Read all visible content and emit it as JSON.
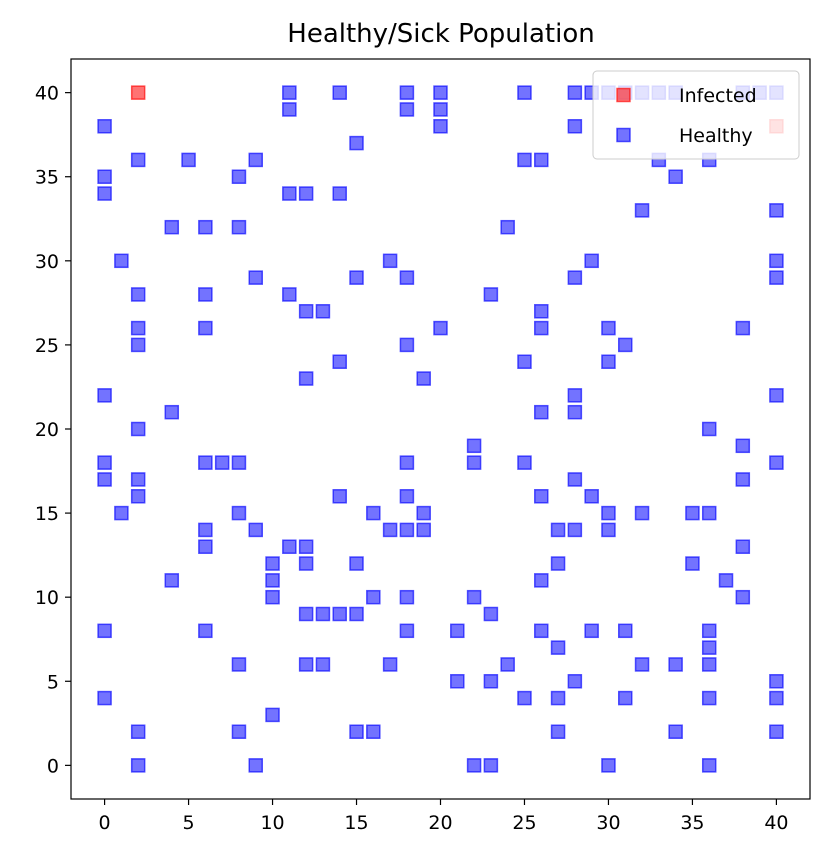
{
  "chart_data": {
    "type": "scatter",
    "title": "Healthy/Sick Population",
    "xlabel": "",
    "ylabel": "",
    "xlim": [
      -2,
      42
    ],
    "ylim": [
      -2,
      42
    ],
    "x_ticks": [
      0,
      5,
      10,
      15,
      20,
      25,
      30,
      35,
      40
    ],
    "y_ticks": [
      0,
      5,
      10,
      15,
      20,
      25,
      30,
      35,
      40
    ],
    "grid": false,
    "legend_position": "top-right",
    "series": [
      {
        "name": "Infected",
        "color": "#ff0000",
        "marker": "square",
        "points": [
          [
            2,
            40
          ],
          [
            40,
            38
          ]
        ]
      },
      {
        "name": "Healthy",
        "color": "#0000ff",
        "marker": "square",
        "points": [
          [
            11,
            40
          ],
          [
            14,
            40
          ],
          [
            18,
            40
          ],
          [
            20,
            40
          ],
          [
            25,
            40
          ],
          [
            28,
            40
          ],
          [
            29,
            40
          ],
          [
            30,
            40
          ],
          [
            31,
            40
          ],
          [
            32,
            40
          ],
          [
            33,
            40
          ],
          [
            34,
            40
          ],
          [
            38,
            40
          ],
          [
            39,
            40
          ],
          [
            40,
            40
          ],
          [
            11,
            39
          ],
          [
            18,
            39
          ],
          [
            20,
            39
          ],
          [
            0,
            38
          ],
          [
            20,
            38
          ],
          [
            28,
            38
          ],
          [
            15,
            37
          ],
          [
            2,
            36
          ],
          [
            5,
            36
          ],
          [
            9,
            36
          ],
          [
            25,
            36
          ],
          [
            26,
            36
          ],
          [
            33,
            36
          ],
          [
            36,
            36
          ],
          [
            0,
            35
          ],
          [
            8,
            35
          ],
          [
            34,
            35
          ],
          [
            0,
            34
          ],
          [
            11,
            34
          ],
          [
            12,
            34
          ],
          [
            14,
            34
          ],
          [
            32,
            33
          ],
          [
            40,
            33
          ],
          [
            4,
            32
          ],
          [
            6,
            32
          ],
          [
            8,
            32
          ],
          [
            24,
            32
          ],
          [
            1,
            30
          ],
          [
            17,
            30
          ],
          [
            29,
            30
          ],
          [
            40,
            30
          ],
          [
            9,
            29
          ],
          [
            15,
            29
          ],
          [
            18,
            29
          ],
          [
            28,
            29
          ],
          [
            40,
            29
          ],
          [
            2,
            28
          ],
          [
            6,
            28
          ],
          [
            11,
            28
          ],
          [
            23,
            28
          ],
          [
            12,
            27
          ],
          [
            13,
            27
          ],
          [
            26,
            27
          ],
          [
            2,
            26
          ],
          [
            6,
            26
          ],
          [
            20,
            26
          ],
          [
            26,
            26
          ],
          [
            30,
            26
          ],
          [
            38,
            26
          ],
          [
            2,
            25
          ],
          [
            18,
            25
          ],
          [
            31,
            25
          ],
          [
            14,
            24
          ],
          [
            25,
            24
          ],
          [
            30,
            24
          ],
          [
            12,
            23
          ],
          [
            19,
            23
          ],
          [
            0,
            22
          ],
          [
            28,
            22
          ],
          [
            40,
            22
          ],
          [
            4,
            21
          ],
          [
            26,
            21
          ],
          [
            28,
            21
          ],
          [
            2,
            20
          ],
          [
            36,
            20
          ],
          [
            22,
            19
          ],
          [
            38,
            19
          ],
          [
            0,
            18
          ],
          [
            6,
            18
          ],
          [
            7,
            18
          ],
          [
            8,
            18
          ],
          [
            18,
            18
          ],
          [
            22,
            18
          ],
          [
            25,
            18
          ],
          [
            40,
            18
          ],
          [
            0,
            17
          ],
          [
            2,
            17
          ],
          [
            28,
            17
          ],
          [
            38,
            17
          ],
          [
            2,
            16
          ],
          [
            14,
            16
          ],
          [
            18,
            16
          ],
          [
            26,
            16
          ],
          [
            29,
            16
          ],
          [
            1,
            15
          ],
          [
            8,
            15
          ],
          [
            16,
            15
          ],
          [
            19,
            15
          ],
          [
            30,
            15
          ],
          [
            32,
            15
          ],
          [
            35,
            15
          ],
          [
            36,
            15
          ],
          [
            6,
            14
          ],
          [
            9,
            14
          ],
          [
            17,
            14
          ],
          [
            18,
            14
          ],
          [
            19,
            14
          ],
          [
            27,
            14
          ],
          [
            28,
            14
          ],
          [
            30,
            14
          ],
          [
            6,
            13
          ],
          [
            11,
            13
          ],
          [
            12,
            13
          ],
          [
            38,
            13
          ],
          [
            10,
            12
          ],
          [
            12,
            12
          ],
          [
            15,
            12
          ],
          [
            27,
            12
          ],
          [
            35,
            12
          ],
          [
            4,
            11
          ],
          [
            10,
            11
          ],
          [
            26,
            11
          ],
          [
            37,
            11
          ],
          [
            10,
            10
          ],
          [
            16,
            10
          ],
          [
            18,
            10
          ],
          [
            22,
            10
          ],
          [
            38,
            10
          ],
          [
            12,
            9
          ],
          [
            13,
            9
          ],
          [
            14,
            9
          ],
          [
            15,
            9
          ],
          [
            23,
            9
          ],
          [
            0,
            8
          ],
          [
            6,
            8
          ],
          [
            18,
            8
          ],
          [
            21,
            8
          ],
          [
            26,
            8
          ],
          [
            29,
            8
          ],
          [
            31,
            8
          ],
          [
            36,
            8
          ],
          [
            27,
            7
          ],
          [
            36,
            7
          ],
          [
            8,
            6
          ],
          [
            12,
            6
          ],
          [
            13,
            6
          ],
          [
            17,
            6
          ],
          [
            24,
            6
          ],
          [
            32,
            6
          ],
          [
            34,
            6
          ],
          [
            36,
            6
          ],
          [
            21,
            5
          ],
          [
            23,
            5
          ],
          [
            28,
            5
          ],
          [
            40,
            5
          ],
          [
            0,
            4
          ],
          [
            25,
            4
          ],
          [
            27,
            4
          ],
          [
            31,
            4
          ],
          [
            36,
            4
          ],
          [
            40,
            4
          ],
          [
            10,
            3
          ],
          [
            2,
            2
          ],
          [
            8,
            2
          ],
          [
            15,
            2
          ],
          [
            16,
            2
          ],
          [
            27,
            2
          ],
          [
            34,
            2
          ],
          [
            40,
            2
          ],
          [
            2,
            0
          ],
          [
            9,
            0
          ],
          [
            22,
            0
          ],
          [
            23,
            0
          ],
          [
            30,
            0
          ],
          [
            36,
            0
          ]
        ]
      }
    ]
  }
}
